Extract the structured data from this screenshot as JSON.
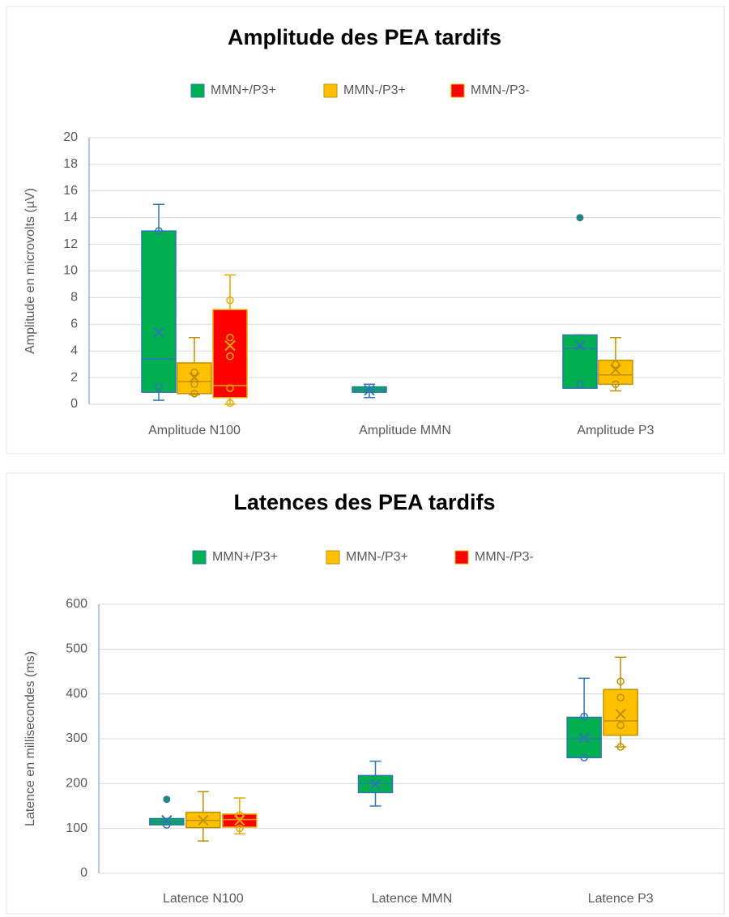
{
  "chart_data": [
    {
      "type": "box",
      "title": "Amplitude des PEA tardifs",
      "y_label": "Amplitude en microvolts (µV)",
      "categories": [
        "Amplitude N100",
        "Amplitude MMN",
        "Amplitude P3"
      ],
      "ylim": [
        0,
        20
      ],
      "yticks": [
        0,
        2,
        4,
        6,
        8,
        10,
        12,
        14,
        16,
        18,
        20
      ],
      "grid": true,
      "legend": "top",
      "series": [
        {
          "name": "MMN+/P3+",
          "color": "#00b050",
          "edge": "#2e75b6",
          "values": [
            {
              "min": 0.3,
              "q1": 0.9,
              "median": 3.4,
              "q3": 13,
              "max": 15,
              "mean": 5.4,
              "points": [
                13,
                1.3
              ],
              "outliers": []
            },
            {
              "min": 0.5,
              "q1": 0.9,
              "median": 1.1,
              "q3": 1.3,
              "max": 1.5,
              "mean": 1.05,
              "points": [],
              "outliers": []
            },
            {
              "min": 1.2,
              "q1": 1.2,
              "median": 4.2,
              "q3": 5.2,
              "max": 5.2,
              "mean": 4.4,
              "points": [
                1.5
              ],
              "outliers": [
                14
              ]
            }
          ]
        },
        {
          "name": "MMN-/P3+",
          "color": "#ffc000",
          "edge": "#bf9000",
          "values": [
            {
              "min": 0.7,
              "q1": 0.8,
              "median": 1.7,
              "q3": 3.1,
              "max": 5,
              "mean": 2.0,
              "points": [
                2.4,
                1.5,
                0.8
              ],
              "outliers": []
            },
            null,
            {
              "min": 1.0,
              "q1": 1.5,
              "median": 2.2,
              "q3": 3.3,
              "max": 5,
              "mean": 2.6,
              "points": [
                3.0,
                1.5
              ],
              "outliers": []
            }
          ]
        },
        {
          "name": "MMN-/P3-",
          "color": "#ff0000",
          "edge": "#e6a800",
          "values": [
            {
              "min": 0,
              "q1": 0.5,
              "median": 1.4,
              "q3": 7.1,
              "max": 9.7,
              "mean": 4.4,
              "points": [
                7.8,
                5,
                3.6,
                1.2,
                0.1
              ],
              "outliers": []
            },
            null,
            null
          ]
        }
      ]
    },
    {
      "type": "box",
      "title": "Latences des PEA tardifs",
      "y_label": "Latence en millisecondes (ms)",
      "categories": [
        "Latence N100",
        "Latence MMN",
        "Latence P3"
      ],
      "ylim": [
        0,
        600
      ],
      "yticks": [
        0,
        100,
        200,
        300,
        400,
        500,
        600
      ],
      "grid": true,
      "legend": "top",
      "series": [
        {
          "name": "MMN+/P3+",
          "color": "#00b050",
          "edge": "#2e75b6",
          "values": [
            {
              "min": 108,
              "q1": 108,
              "median": 115,
              "q3": 122,
              "max": 122,
              "mean": 118,
              "points": [
                108
              ],
              "outliers": [
                165
              ]
            },
            {
              "min": 150,
              "q1": 180,
              "median": 200,
              "q3": 218,
              "max": 250,
              "mean": 198,
              "points": [],
              "outliers": []
            },
            {
              "min": 258,
              "q1": 258,
              "median": 300,
              "q3": 348,
              "max": 435,
              "mean": 302,
              "points": [
                258,
                350
              ],
              "outliers": []
            }
          ]
        },
        {
          "name": "MMN-/P3+",
          "color": "#ffc000",
          "edge": "#bf9000",
          "values": [
            {
              "min": 72,
              "q1": 102,
              "median": 118,
              "q3": 136,
              "max": 182,
              "mean": 118,
              "points": [],
              "outliers": []
            },
            null,
            {
              "min": 282,
              "q1": 308,
              "median": 340,
              "q3": 410,
              "max": 482,
              "mean": 355,
              "points": [
                428,
                392,
                330,
                282
              ],
              "outliers": []
            }
          ]
        },
        {
          "name": "MMN-/P3-",
          "color": "#ff0000",
          "edge": "#e6a800",
          "values": [
            {
              "min": 88,
              "q1": 103,
              "median": 120,
              "q3": 132,
              "max": 168,
              "mean": 118,
              "points": [
                130,
                100
              ],
              "outliers": []
            },
            null,
            null
          ]
        }
      ]
    }
  ]
}
